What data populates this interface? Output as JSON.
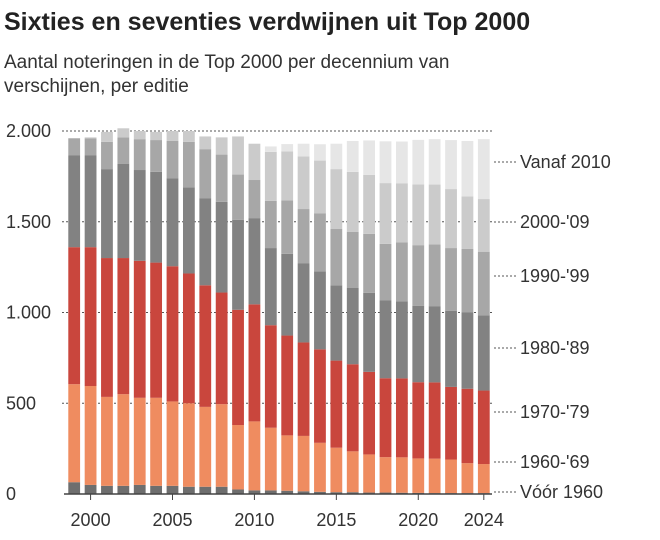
{
  "title": "Sixties en seventies verdwijnen uit Top 2000",
  "subtitle": "Aantal noteringen in de Top 2000 per decennium van verschijnen, per editie",
  "chart_data": {
    "type": "bar",
    "stacked": true,
    "title": "Sixties en seventies verdwijnen uit Top 2000",
    "subtitle": "Aantal noteringen in de Top 2000 per decennium van verschijnen, per editie",
    "xlabel": "",
    "ylabel": "",
    "ylim": [
      0,
      2000
    ],
    "yticks": [
      0,
      500,
      1000,
      1500,
      2000
    ],
    "ytick_labels": [
      "0",
      "500",
      "1.000",
      "1.500",
      "2.000"
    ],
    "xtick_labels": [
      "2000",
      "2005",
      "2010",
      "2015",
      "2020",
      "2024"
    ],
    "grid": true,
    "legend": "right, labels at end of bars",
    "categories": [
      "1999",
      "2000",
      "2001",
      "2002",
      "2003",
      "2004",
      "2005",
      "2006",
      "2007",
      "2008",
      "2009",
      "2010",
      "2011",
      "2012",
      "2013",
      "2014",
      "2015",
      "2016",
      "2017",
      "2018",
      "2019",
      "2020",
      "2021",
      "2022",
      "2023",
      "2024"
    ],
    "series": [
      {
        "name": "Vóór 1960",
        "color": "#6e6e6e",
        "values": [
          65,
          50,
          45,
          45,
          50,
          45,
          45,
          40,
          40,
          40,
          25,
          20,
          20,
          18,
          15,
          12,
          10,
          10,
          8,
          8,
          7,
          6,
          5,
          5,
          5,
          5
        ]
      },
      {
        "name": "1960-'69",
        "color": "#ef8c60",
        "values": [
          540,
          545,
          490,
          505,
          480,
          485,
          465,
          460,
          440,
          455,
          355,
          380,
          345,
          305,
          305,
          270,
          245,
          225,
          210,
          195,
          195,
          190,
          190,
          185,
          165,
          160
        ]
      },
      {
        "name": "1970-'79",
        "color": "#c9463d",
        "values": [
          755,
          765,
          765,
          750,
          755,
          745,
          745,
          715,
          670,
          615,
          635,
          645,
          565,
          550,
          515,
          515,
          480,
          480,
          455,
          435,
          435,
          420,
          420,
          400,
          410,
          405
        ]
      },
      {
        "name": "1980-'89",
        "color": "#828282",
        "values": [
          505,
          505,
          490,
          520,
          500,
          500,
          485,
          475,
          480,
          500,
          495,
          475,
          425,
          450,
          435,
          430,
          415,
          420,
          435,
          430,
          425,
          420,
          420,
          420,
          420,
          415
        ]
      },
      {
        "name": "1990-'99",
        "color": "#a7a7a7",
        "values": [
          95,
          95,
          150,
          145,
          170,
          175,
          205,
          250,
          270,
          260,
          250,
          210,
          260,
          295,
          300,
          320,
          310,
          310,
          325,
          310,
          325,
          335,
          340,
          345,
          350,
          350
        ]
      },
      {
        "name": "2000-'09",
        "color": "#cbcbcb",
        "values": [
          0,
          5,
          55,
          50,
          45,
          45,
          55,
          60,
          70,
          95,
          210,
          200,
          270,
          270,
          290,
          290,
          330,
          330,
          325,
          335,
          325,
          335,
          330,
          325,
          290,
          290
        ]
      },
      {
        "name": "Vanaf 2010",
        "color": "#e6e6e6",
        "values": [
          0,
          0,
          0,
          0,
          0,
          0,
          0,
          0,
          0,
          0,
          0,
          0,
          30,
          40,
          70,
          90,
          140,
          170,
          190,
          230,
          230,
          245,
          250,
          270,
          305,
          330
        ]
      }
    ]
  }
}
